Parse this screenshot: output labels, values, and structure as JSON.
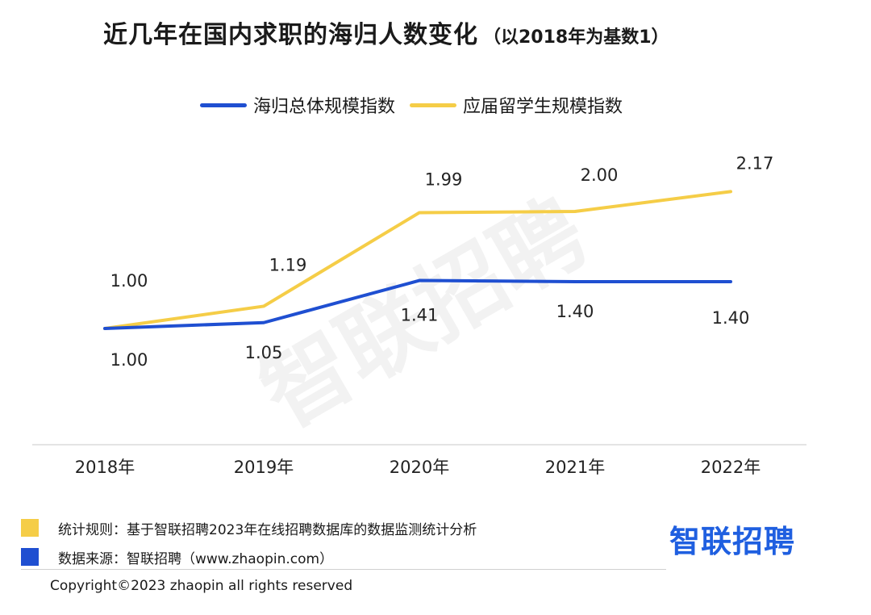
{
  "header": {
    "title": "近几年在国内求职的海归人数变化",
    "subtitle": "（以2018年为基数1）"
  },
  "colors": {
    "series_blue": "#1f4fd1",
    "series_yellow": "#f5cd47",
    "brand_blue": "#1f5fe0"
  },
  "chart_data": {
    "type": "line",
    "categories": [
      "2018年",
      "2019年",
      "2020年",
      "2021年",
      "2022年"
    ],
    "series": [
      {
        "name": "海归总体规模指数",
        "values": [
          1.0,
          1.05,
          1.41,
          1.4,
          1.4
        ],
        "labels": [
          "1.00",
          "1.05",
          "1.41",
          "1.40",
          "1.40"
        ]
      },
      {
        "name": "应届留学生规模指数",
        "values": [
          1.0,
          1.19,
          1.99,
          2.0,
          2.17
        ],
        "labels": [
          "1.00",
          "1.19",
          "1.99",
          "2.00",
          "2.17"
        ]
      }
    ],
    "legend_position": "top",
    "grid": false
  },
  "notes": {
    "rule": "统计规则：基于智联招聘2023年在线招聘数据库的数据监测统计分析",
    "source": "数据来源：智联招聘（www.zhaopin.com）"
  },
  "brand": "智联招聘",
  "watermark": "智联招聘",
  "copyright": "Copyright©2023 zhaopin all rights reserved"
}
